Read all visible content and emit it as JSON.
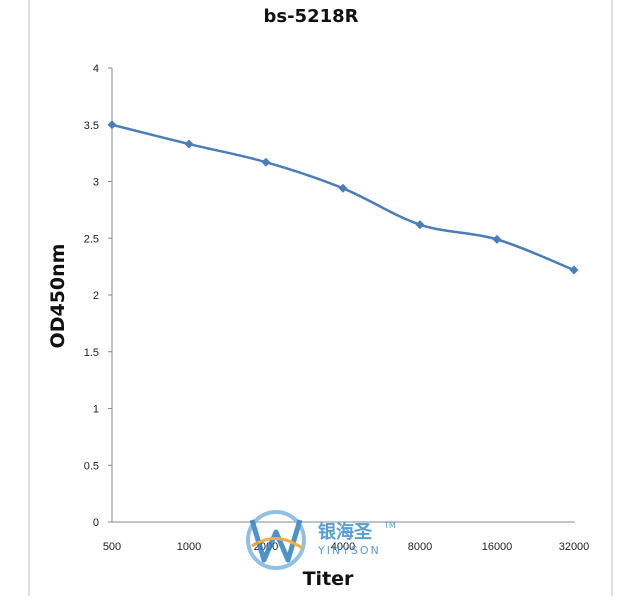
{
  "chart_data": {
    "type": "line",
    "title": "bs-5218R",
    "xlabel": "Titer",
    "ylabel": "OD450nm",
    "categories": [
      "500",
      "1000",
      "2000",
      "4000",
      "8000",
      "16000",
      "32000"
    ],
    "series": [
      {
        "values": [
          3.5,
          3.33,
          3.17,
          2.94,
          2.62,
          2.49,
          2.22
        ]
      }
    ],
    "ylim": [
      0,
      4
    ],
    "yticks": [
      "0",
      "0.5",
      "1",
      "1.5",
      "2",
      "2.5",
      "3",
      "3.5",
      "4"
    ],
    "grid": false,
    "legend": "none",
    "line_color": "#4a7ebb"
  },
  "watermark": {
    "cn": "银海圣",
    "en": "YINYSON",
    "tm": "TM"
  }
}
